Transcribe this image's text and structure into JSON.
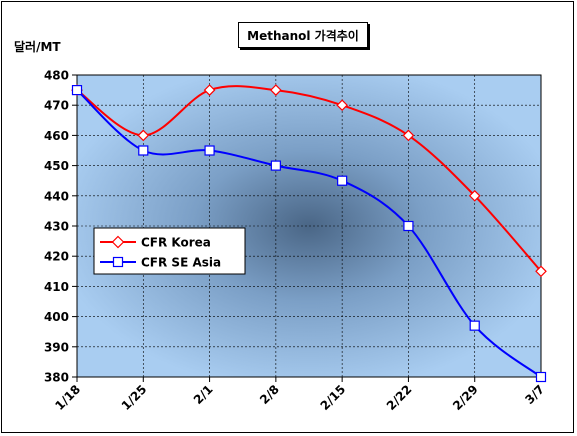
{
  "chart_data": {
    "type": "line",
    "title": "Methanol 가격추이",
    "ylabel": "달러/MT",
    "xlabel": "",
    "categories": [
      "1/18",
      "1/25",
      "2/1",
      "2/8",
      "2/15",
      "2/22",
      "2/29",
      "3/7"
    ],
    "ylim": [
      380,
      480
    ],
    "yticks": [
      380,
      390,
      400,
      410,
      420,
      430,
      440,
      450,
      460,
      470,
      480
    ],
    "grid": true,
    "legend_position": "left-center",
    "series": [
      {
        "name": "CFR Korea",
        "values": [
          475,
          460,
          475,
          475,
          470,
          460,
          440,
          415
        ],
        "color": "#ff0000",
        "marker": "diamond"
      },
      {
        "name": "CFR SE Asia",
        "values": [
          475,
          455,
          455,
          450,
          445,
          430,
          397,
          380
        ],
        "color": "#0000ff",
        "marker": "square"
      }
    ],
    "plot_background": "#a8cdf0"
  }
}
